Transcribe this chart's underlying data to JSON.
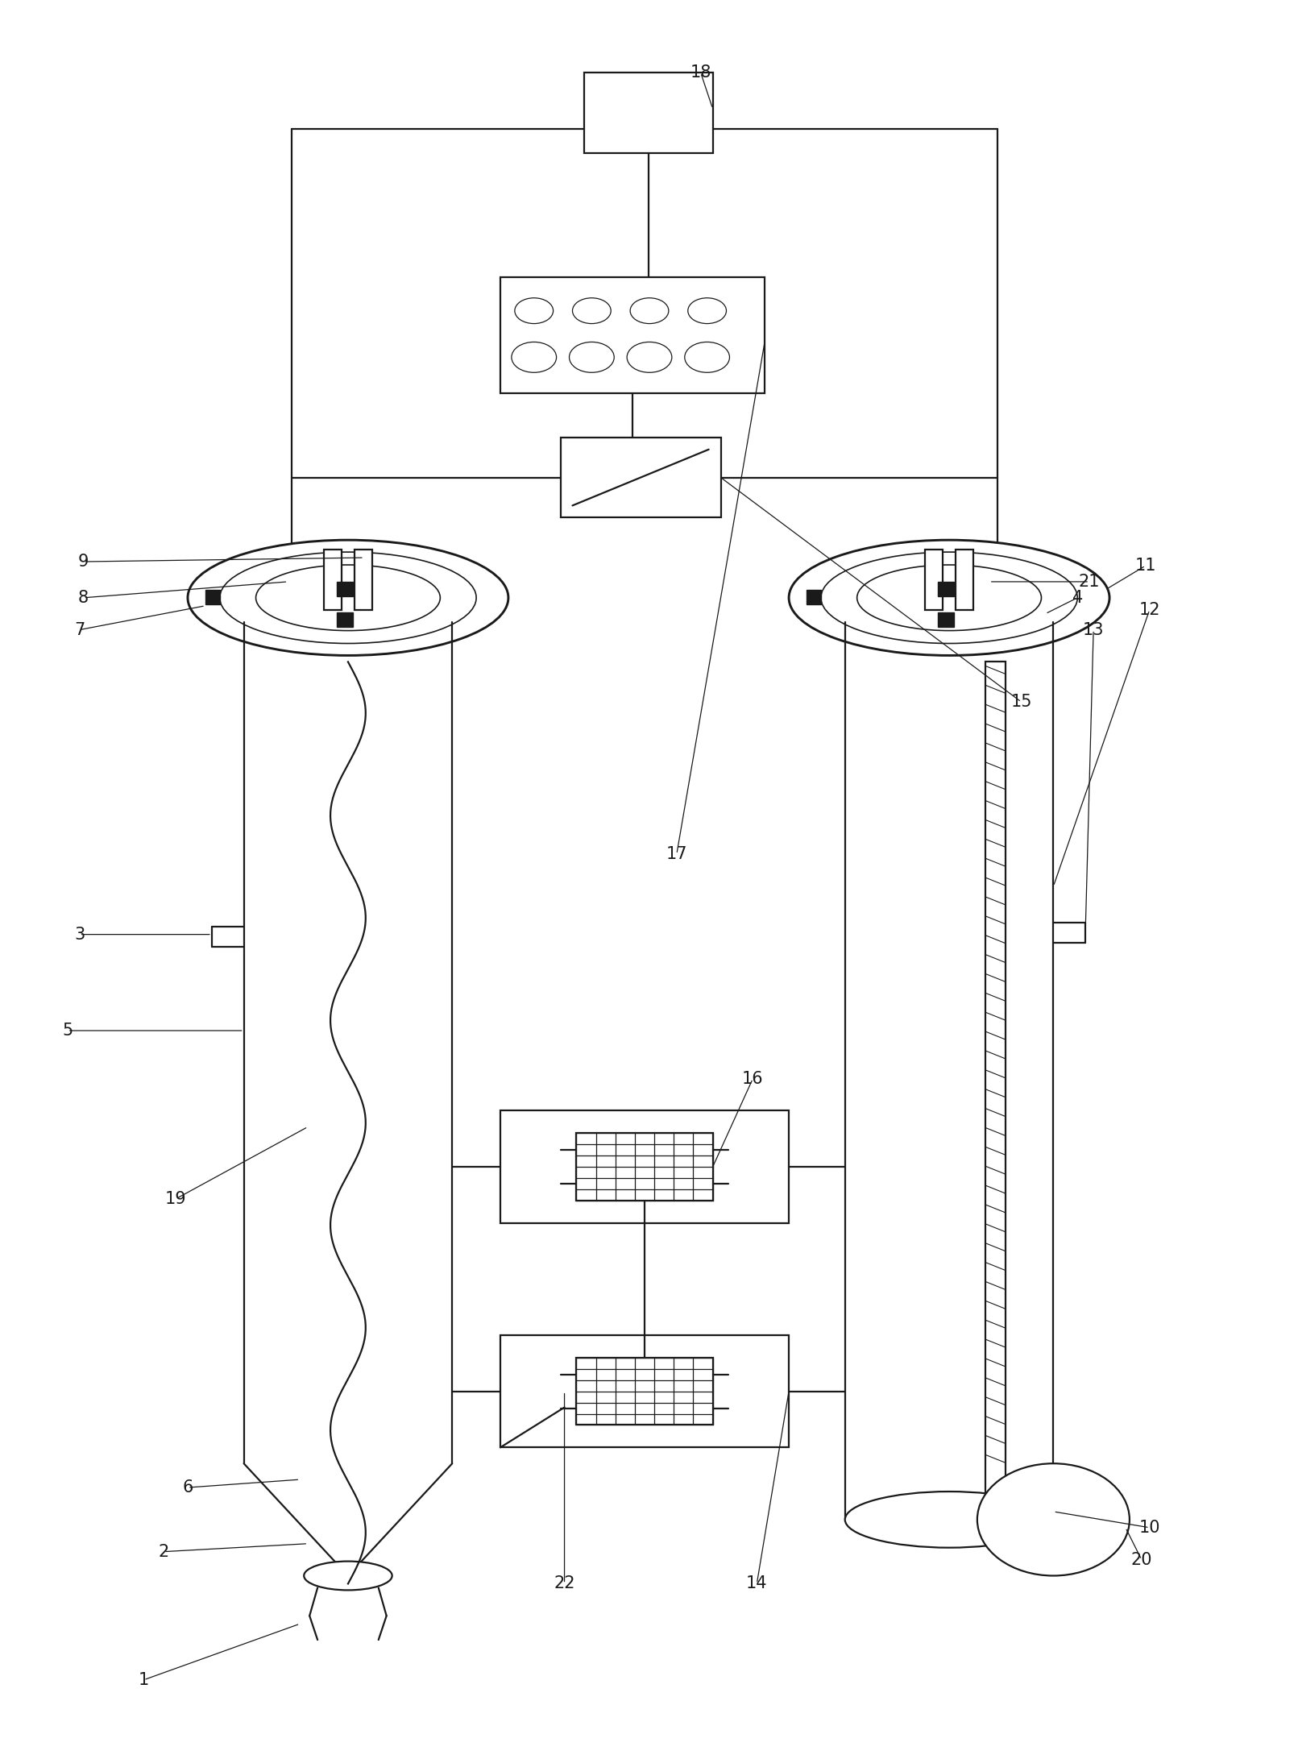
{
  "fig_width": 16.11,
  "fig_height": 21.78,
  "dpi": 100,
  "lw": 1.6,
  "lw_thin": 0.9,
  "color": "#1a1a1a",
  "bg": "#ffffff",
  "label_fs": 15
}
